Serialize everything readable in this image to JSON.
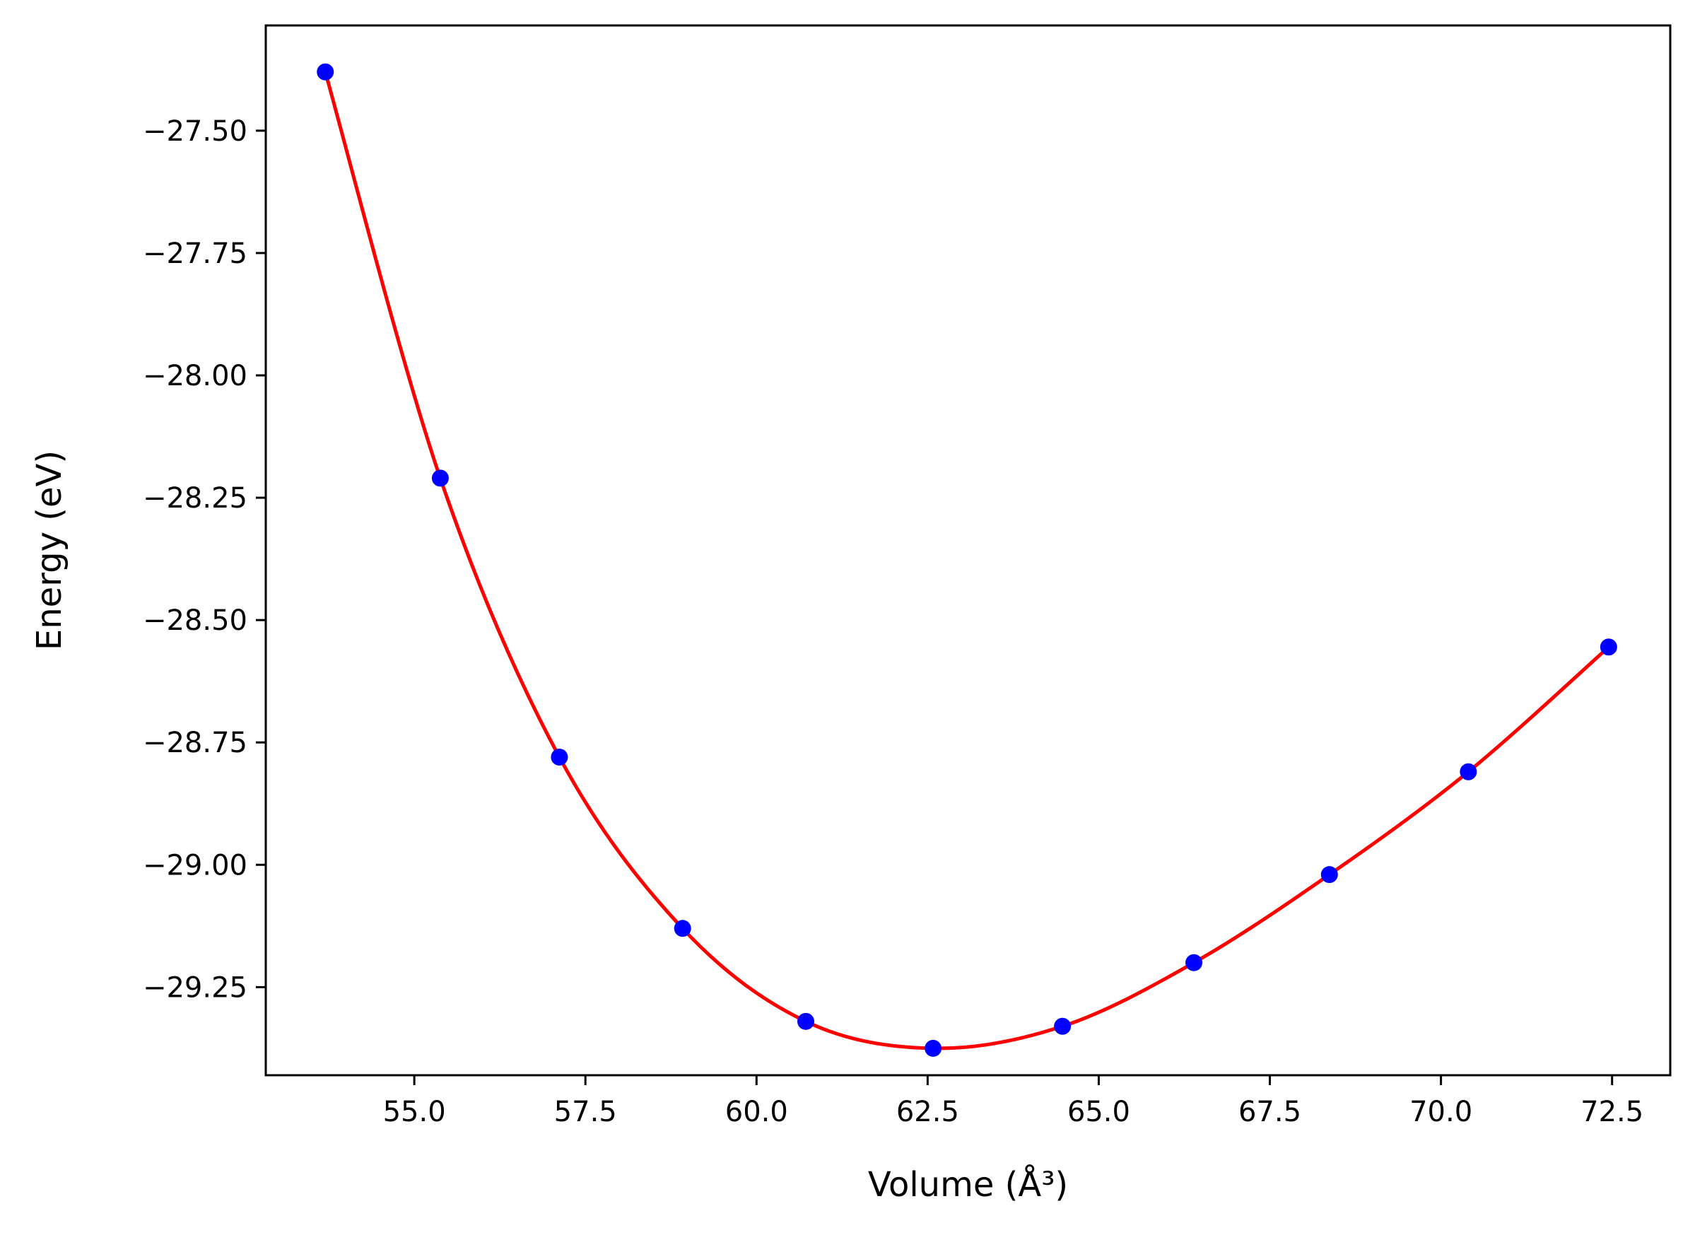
{
  "chart_data": {
    "type": "line",
    "title": "",
    "xlabel": "Volume (Å³)",
    "ylabel": "Energy (eV)",
    "xlim": [
      52.83,
      73.35
    ],
    "ylim": [
      -29.43,
      -27.285
    ],
    "grid": false,
    "x_ticks": [
      {
        "value": 55.0,
        "label": "55.0"
      },
      {
        "value": 57.5,
        "label": "57.5"
      },
      {
        "value": 60.0,
        "label": "60.0"
      },
      {
        "value": 62.5,
        "label": "62.5"
      },
      {
        "value": 65.0,
        "label": "65.0"
      },
      {
        "value": 67.5,
        "label": "67.5"
      },
      {
        "value": 70.0,
        "label": "70.0"
      },
      {
        "value": 72.5,
        "label": "72.5"
      }
    ],
    "y_ticks": [
      {
        "value": -27.5,
        "label": "−27.50"
      },
      {
        "value": -27.75,
        "label": "−27.75"
      },
      {
        "value": -28.0,
        "label": "−28.00"
      },
      {
        "value": -28.25,
        "label": "−28.25"
      },
      {
        "value": -28.5,
        "label": "−28.50"
      },
      {
        "value": -28.75,
        "label": "−28.75"
      },
      {
        "value": -29.0,
        "label": "−29.00"
      },
      {
        "value": -29.25,
        "label": "−29.25"
      }
    ],
    "series": [
      {
        "kind": "scatter",
        "color": "#0000ff",
        "x": [
          53.7,
          55.38,
          57.12,
          58.92,
          60.72,
          62.58,
          64.47,
          66.39,
          68.37,
          70.4,
          72.45
        ],
        "y": [
          -27.38,
          -28.21,
          -28.78,
          -29.13,
          -29.32,
          -29.375,
          -29.33,
          -29.2,
          -29.02,
          -28.81,
          -28.555
        ]
      },
      {
        "kind": "line",
        "color": "#ff0000",
        "x": [
          53.7,
          55.38,
          57.12,
          58.92,
          60.72,
          62.58,
          64.47,
          66.39,
          68.37,
          70.4,
          72.45
        ],
        "y": [
          -27.38,
          -28.21,
          -28.78,
          -29.13,
          -29.32,
          -29.375,
          -29.33,
          -29.2,
          -29.02,
          -28.81,
          -28.555
        ]
      }
    ]
  }
}
